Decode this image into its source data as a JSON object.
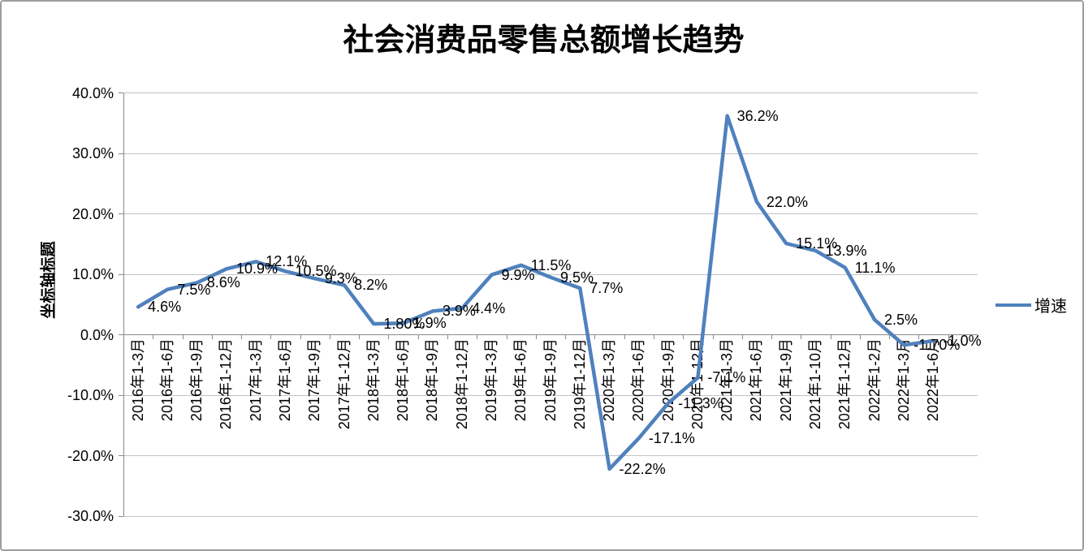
{
  "window": {
    "background": "#ffffff",
    "border_color": "#9d9d9d"
  },
  "chart_data": {
    "type": "line",
    "title": "社会消费品零售总额增长趋势",
    "xlabel": "",
    "ylabel": "坐标轴标题",
    "legend_position": "right",
    "legend": [
      {
        "label": "增速",
        "color": "#4F81BD"
      }
    ],
    "grid": true,
    "ylim": [
      -30,
      40
    ],
    "y_tick_step": 10,
    "y_tick_labels": [
      "40.0%",
      "30.0%",
      "20.0%",
      "10.0%",
      "0.0%",
      "-10.0%",
      "-20.0%",
      "-30.0%"
    ],
    "categories": [
      "2016年1-3月",
      "2016年1-6月",
      "2016年1-9月",
      "2016年1-12月",
      "2017年1-3月",
      "2017年1-6月",
      "2017年1-9月",
      "2017年1-12月",
      "2018年1-3月",
      "2018年1-6月",
      "2018年1-9月",
      "2018年1-12月",
      "2019年1-3月",
      "2019年1-6月",
      "2019年1-9月",
      "2019年1-12月",
      "2020年1-3月",
      "2020年1-6月",
      "2020年1-9月",
      "2020年1-12月",
      "2021年1-3月",
      "2021年1-6月",
      "2021年1-9月",
      "2021年1-10月",
      "2021年1-12月",
      "2022年1-2月",
      "2022年1-3月",
      "2022年1-6月"
    ],
    "series": [
      {
        "name": "增速",
        "color": "#4F81BD",
        "values": [
          4.6,
          7.5,
          8.6,
          10.9,
          12.1,
          10.5,
          9.3,
          8.2,
          1.8,
          1.9,
          3.9,
          4.4,
          9.9,
          11.5,
          9.5,
          7.7,
          -22.2,
          -17.1,
          -11.3,
          -7.1,
          36.2,
          22.0,
          15.1,
          13.9,
          11.1,
          2.5,
          -1.7,
          -1.0
        ],
        "data_labels": [
          "4.6%",
          "7.5%",
          "8.6%",
          "10.9%",
          "12.1%",
          "10.5%",
          "9.3%",
          "8.2%",
          "1.80%",
          "1.9%",
          "3.9%",
          "4.4%",
          "9.9%",
          "11.5%",
          "9.5%",
          "7.7%",
          "-22.2%",
          "-17.1%",
          "-11.3%",
          "-7.1%",
          "36.2%",
          "22.0%",
          "15.1%",
          "13.9%",
          "11.1%",
          "2.5%",
          "-1.70%",
          "-1.0%"
        ]
      }
    ],
    "colors": {
      "line": "#4F81BD",
      "gridline": "#c3c3c3",
      "axis": "#8a8a8a",
      "text": "#000000"
    }
  }
}
